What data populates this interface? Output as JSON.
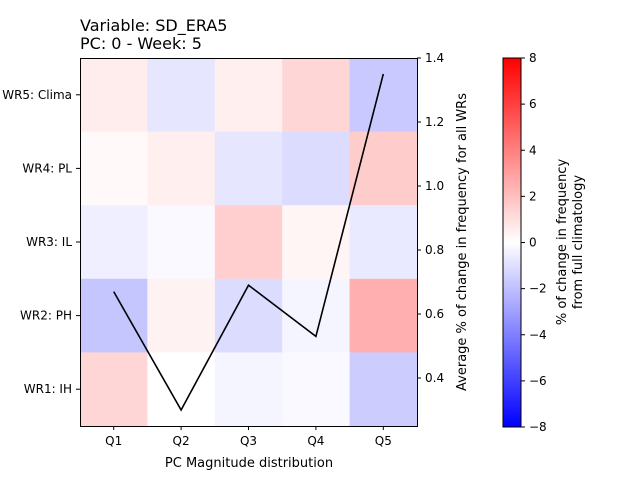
{
  "chart_data": {
    "type": "heatmap",
    "title_line1": "Variable: SD_ERA5",
    "title_line2": "PC: 0 - Week: 5",
    "xlabel": "PC Magnitude distribution",
    "x_categories": [
      "Q1",
      "Q2",
      "Q3",
      "Q4",
      "Q5"
    ],
    "y_categories": [
      "WR5: Clima",
      "WR4: PL",
      "WR3: IL",
      "WR2: PH",
      "WR1: IH"
    ],
    "heatmap_values": [
      [
        0.6,
        -0.8,
        0.5,
        1.3,
        -1.7
      ],
      [
        0.2,
        0.5,
        -0.8,
        -1.1,
        1.6
      ],
      [
        -0.5,
        -0.2,
        1.5,
        0.3,
        -0.7
      ],
      [
        -1.8,
        0.4,
        -1.1,
        -0.3,
        2.5
      ],
      [
        1.3,
        0.0,
        -0.3,
        -0.2,
        -1.6
      ]
    ],
    "colorbar": {
      "label_line1": "% of change in frequency",
      "label_line2": "from full climatology",
      "vmin": -8,
      "vmax": 8,
      "ticks": [
        -8,
        -6,
        -4,
        -2,
        0,
        2,
        4,
        6,
        8
      ],
      "tick_labels": [
        "−8",
        "−6",
        "−4",
        "−2",
        "0",
        "2",
        "4",
        "6",
        "8"
      ],
      "colormap": "bwr"
    },
    "line_series": {
      "axis_label": "Average % of change in frequency for all WRs",
      "x": [
        "Q1",
        "Q2",
        "Q3",
        "Q4",
        "Q5"
      ],
      "values": [
        0.67,
        0.3,
        0.69,
        0.53,
        1.35
      ],
      "color": "#000000"
    },
    "right_axis": {
      "ylim": [
        0.25,
        1.4
      ],
      "ticks": [
        0.4,
        0.6,
        0.8,
        1.0,
        1.2,
        1.4
      ],
      "tick_labels": [
        "0.4",
        "0.6",
        "0.8",
        "1.0",
        "1.2",
        "1.4"
      ]
    }
  }
}
